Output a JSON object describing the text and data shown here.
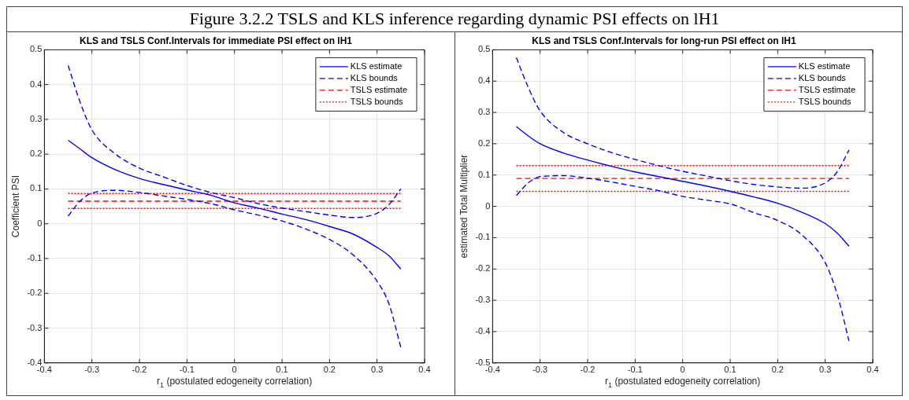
{
  "chart_data": [
    {
      "type": "line",
      "title": "KLS and TSLS Conf.Intervals for immediate PSI effect on lH1",
      "xlabel": "r$_{1}$ (postulated edogeneity correlation)",
      "ylabel": "Coefficient PSI",
      "annotations": [
        "Figure 3.2.2 TSLS and KLS inference regarding dynamic PSI effects on lH1"
      ],
      "x": [
        -0.35,
        -0.325,
        -0.3,
        -0.25,
        -0.2,
        -0.15,
        -0.1,
        -0.05,
        0,
        0.05,
        0.1,
        0.15,
        0.2,
        0.25,
        0.3,
        0.325,
        0.35
      ],
      "series": [
        {
          "name": "KLS estimate",
          "color": "#0000ff",
          "line_style": "solid",
          "values": [
            0.24,
            0.215,
            0.19,
            0.155,
            0.13,
            0.113,
            0.097,
            0.082,
            0.06,
            0.045,
            0.028,
            0.012,
            -0.008,
            -0.03,
            -0.068,
            -0.092,
            -0.13
          ]
        },
        {
          "name": "KLS bounds",
          "color": "#0000ff",
          "line_style": "dashed",
          "values": [
            0.455,
            0.35,
            0.27,
            0.2,
            0.16,
            0.135,
            0.11,
            0.09,
            0.075,
            0.058,
            0.045,
            0.035,
            0.025,
            0.018,
            0.03,
            0.055,
            0.1
          ]
        },
        {
          "color": "#0000ff",
          "line_style": "dashed",
          "values": [
            0.022,
            0.065,
            0.088,
            0.096,
            0.09,
            0.08,
            0.07,
            0.058,
            0.04,
            0.025,
            0.008,
            -0.015,
            -0.045,
            -0.09,
            -0.165,
            -0.23,
            -0.355
          ]
        },
        {
          "name": "TSLS estimate",
          "color": "#ff0000",
          "line_style": "dashed",
          "values": [
            0.065,
            0.065,
            0.065,
            0.065,
            0.065,
            0.065,
            0.065,
            0.065,
            0.065,
            0.065,
            0.065,
            0.065,
            0.065,
            0.065,
            0.065,
            0.065,
            0.065
          ]
        },
        {
          "name": "TSLS bounds",
          "color": "#ff0000",
          "line_style": "dotted",
          "values": [
            0.087,
            0.087,
            0.087,
            0.087,
            0.087,
            0.087,
            0.087,
            0.087,
            0.087,
            0.087,
            0.087,
            0.087,
            0.087,
            0.087,
            0.087,
            0.087,
            0.087
          ]
        },
        {
          "color": "#ff0000",
          "line_style": "dotted",
          "values": [
            0.044,
            0.044,
            0.044,
            0.044,
            0.044,
            0.044,
            0.044,
            0.044,
            0.044,
            0.044,
            0.044,
            0.044,
            0.044,
            0.044,
            0.044,
            0.044,
            0.044
          ]
        }
      ],
      "xlim": [
        -0.4,
        0.4
      ],
      "xticks": [
        -0.4,
        -0.3,
        -0.2,
        -0.1,
        0,
        0.1,
        0.2,
        0.3,
        0.4
      ],
      "ylim": [
        -0.4,
        0.5
      ],
      "yticks": [
        -0.4,
        -0.3,
        -0.2,
        -0.1,
        0,
        0.1,
        0.2,
        0.3,
        0.4,
        0.5
      ],
      "grid": true,
      "legend": "top right",
      "marker": "none"
    },
    {
      "type": "line",
      "title": "KLS and TSLS Conf.Intervals for long-run PSI effect on lH1",
      "xlabel": "r$_{1}$ (postulated edogeneity correlation)",
      "ylabel": "estimated Total Multiplier",
      "x": [
        -0.35,
        -0.325,
        -0.3,
        -0.25,
        -0.2,
        -0.15,
        -0.1,
        -0.05,
        0,
        0.05,
        0.1,
        0.15,
        0.2,
        0.25,
        0.3,
        0.325,
        0.35
      ],
      "series": [
        {
          "name": "KLS estimate",
          "color": "#0000ff",
          "line_style": "solid",
          "values": [
            0.255,
            0.225,
            0.2,
            0.17,
            0.148,
            0.128,
            0.11,
            0.095,
            0.08,
            0.065,
            0.048,
            0.03,
            0.01,
            -0.018,
            -0.055,
            -0.085,
            -0.127
          ]
        },
        {
          "name": "KLS bounds",
          "color": "#0000ff",
          "line_style": "dashed",
          "values": [
            0.475,
            0.38,
            0.305,
            0.235,
            0.2,
            0.172,
            0.15,
            0.13,
            0.112,
            0.097,
            0.082,
            0.07,
            0.062,
            0.058,
            0.075,
            0.11,
            0.18
          ]
        },
        {
          "color": "#0000ff",
          "line_style": "dashed",
          "values": [
            0.035,
            0.075,
            0.095,
            0.098,
            0.09,
            0.078,
            0.064,
            0.05,
            0.032,
            0.02,
            0.008,
            -0.02,
            -0.045,
            -0.09,
            -0.18,
            -0.28,
            -0.43
          ]
        },
        {
          "name": "TSLS estimate",
          "color": "#ff0000",
          "line_style": "dashed",
          "values": [
            0.089,
            0.089,
            0.089,
            0.089,
            0.089,
            0.089,
            0.089,
            0.089,
            0.089,
            0.089,
            0.089,
            0.089,
            0.089,
            0.089,
            0.089,
            0.089,
            0.089
          ]
        },
        {
          "name": "TSLS bounds",
          "color": "#ff0000",
          "line_style": "dotted",
          "values": [
            0.13,
            0.13,
            0.13,
            0.13,
            0.13,
            0.13,
            0.13,
            0.13,
            0.13,
            0.13,
            0.13,
            0.13,
            0.13,
            0.13,
            0.13,
            0.13,
            0.13
          ]
        },
        {
          "color": "#ff0000",
          "line_style": "dotted",
          "values": [
            0.048,
            0.048,
            0.048,
            0.048,
            0.048,
            0.048,
            0.048,
            0.048,
            0.048,
            0.048,
            0.048,
            0.048,
            0.048,
            0.048,
            0.048,
            0.048,
            0.048
          ]
        }
      ],
      "xlim": [
        -0.4,
        0.4
      ],
      "xticks": [
        -0.4,
        -0.3,
        -0.2,
        -0.1,
        0,
        0.1,
        0.2,
        0.3,
        0.4
      ],
      "ylim": [
        -0.5,
        0.5
      ],
      "yticks": [
        -0.5,
        -0.4,
        -0.3,
        -0.2,
        -0.1,
        0,
        0.1,
        0.2,
        0.3,
        0.4,
        0.5
      ],
      "grid": true,
      "legend": "top right",
      "marker": "none"
    }
  ]
}
